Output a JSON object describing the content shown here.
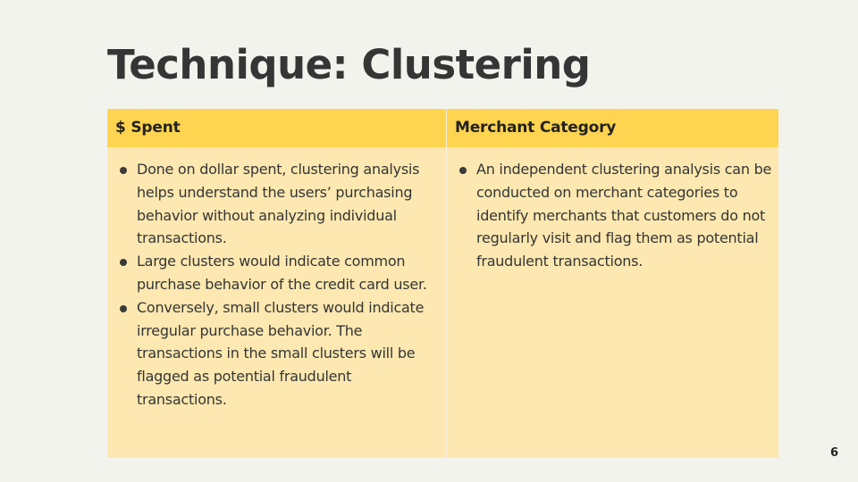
{
  "slide": {
    "title": "Technique: Clustering",
    "page_number": "6"
  },
  "table": {
    "headers": [
      "$ Spent",
      "Merchant  Category"
    ],
    "columns": [
      {
        "bullets": [
          "Done on dollar spent, clustering analysis helps understand the users’ purchasing behavior without analyzing individual transactions.",
          "Large clusters would indicate common purchase behavior of the credit card user.",
          "Conversely, small clusters would indicate irregular purchase behavior. The transactions in the small clusters will be flagged as potential fraudulent transactions."
        ]
      },
      {
        "bullets": [
          "An independent clustering analysis can be conducted on merchant categories to identify merchants that customers do not regularly visit and flag them as potential fraudulent transactions."
        ]
      }
    ]
  },
  "colors": {
    "background": "#f3f3ee",
    "header_fill": "#ffd450",
    "cell_fill": "#fce8b0",
    "text": "#353535"
  }
}
